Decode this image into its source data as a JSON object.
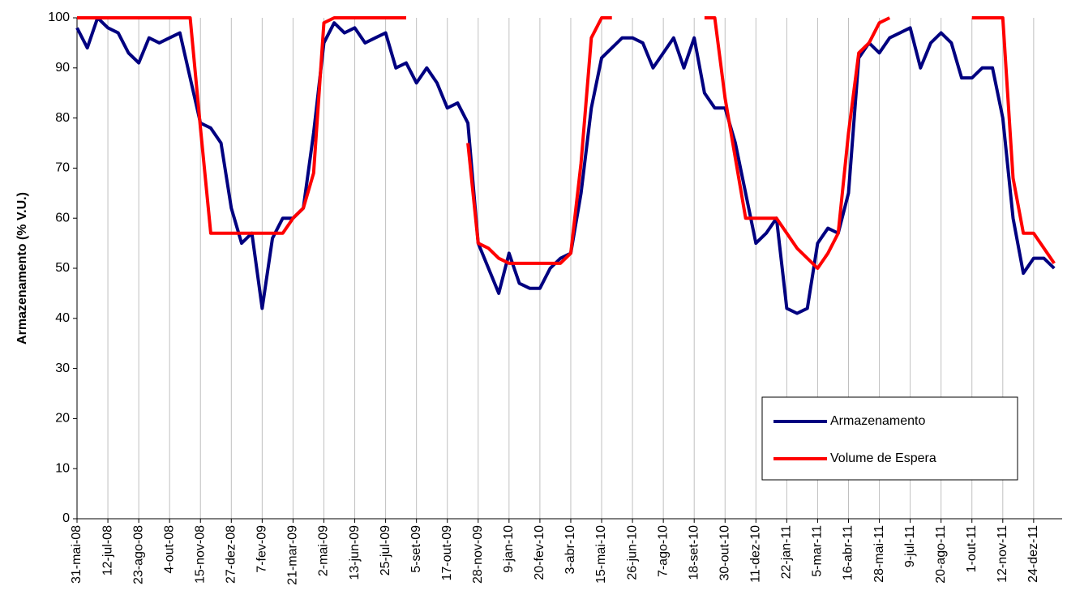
{
  "chart_data": {
    "type": "line",
    "y_label": "Armazenamento (% V.U.)",
    "categories": [
      "31-mai-08",
      null,
      null,
      "12-jul-08",
      null,
      null,
      "23-ago-08",
      null,
      null,
      "4-out-08",
      null,
      null,
      "15-nov-08",
      null,
      null,
      "27-dez-08",
      null,
      null,
      "7-fev-09",
      null,
      null,
      "21-mar-09",
      null,
      null,
      "2-mai-09",
      null,
      null,
      "13-jun-09",
      null,
      null,
      "25-jul-09",
      null,
      null,
      "5-set-09",
      null,
      null,
      "17-out-09",
      null,
      null,
      "28-nov-09",
      null,
      null,
      "9-jan-10",
      null,
      null,
      "20-fev-10",
      null,
      null,
      "3-abr-10",
      null,
      null,
      "15-mai-10",
      null,
      null,
      "26-jun-10",
      null,
      null,
      "7-ago-10",
      null,
      null,
      "18-set-10",
      null,
      null,
      "30-out-10",
      null,
      null,
      "11-dez-10",
      null,
      null,
      "22-jan-11",
      null,
      null,
      "5-mar-11",
      null,
      null,
      "16-abr-11",
      null,
      null,
      "28-mai-11",
      null,
      null,
      "9-jul-11",
      null,
      null,
      "20-ago-11",
      null,
      null,
      "1-out-11",
      null,
      null,
      "12-nov-11",
      null,
      null,
      "24-dez-11",
      null,
      null
    ],
    "series": [
      {
        "name": "Armazenamento",
        "color": "#000080",
        "values": [
          98,
          94,
          100,
          98,
          97,
          93,
          91,
          96,
          95,
          96,
          97,
          88,
          79,
          78,
          75,
          62,
          55,
          57,
          42,
          56,
          60,
          60,
          62,
          77,
          95,
          99,
          97,
          98,
          95,
          96,
          97,
          90,
          91,
          87,
          90,
          87,
          82,
          83,
          79,
          55,
          50,
          45,
          53,
          47,
          46,
          46,
          50,
          52,
          53,
          65,
          82,
          92,
          94,
          96,
          96,
          95,
          90,
          93,
          96,
          90,
          96,
          85,
          82,
          82,
          75,
          65,
          55,
          57,
          60,
          42,
          41,
          42,
          55,
          58,
          57,
          65,
          92,
          95,
          93,
          96,
          97,
          98,
          90,
          95,
          97,
          95,
          88,
          88,
          90,
          90,
          80,
          60,
          49,
          52,
          52,
          50
        ]
      },
      {
        "name": "Volume de Espera",
        "color": "#ff0000",
        "values": [
          100,
          100,
          100,
          100,
          100,
          100,
          100,
          100,
          100,
          100,
          100,
          100,
          78,
          57,
          57,
          57,
          57,
          57,
          57,
          57,
          57,
          60,
          62,
          69,
          99,
          100,
          100,
          100,
          100,
          100,
          100,
          100,
          100,
          null,
          null,
          null,
          null,
          null,
          75,
          55,
          54,
          52,
          51,
          51,
          51,
          51,
          51,
          51,
          53,
          71,
          96,
          100,
          100,
          null,
          null,
          null,
          null,
          null,
          null,
          null,
          null,
          100,
          100,
          84,
          72,
          60,
          60,
          60,
          60,
          57,
          54,
          52,
          50,
          53,
          57,
          77,
          93,
          95,
          99,
          100,
          null,
          null,
          null,
          null,
          null,
          null,
          null,
          100,
          100,
          100,
          100,
          68,
          57,
          57,
          54,
          51
        ]
      }
    ],
    "ylim": [
      0,
      100
    ],
    "yticks": [
      0,
      10,
      20,
      30,
      40,
      50,
      60,
      70,
      80,
      90,
      100
    ],
    "grid": "x",
    "legend": "lower right"
  }
}
